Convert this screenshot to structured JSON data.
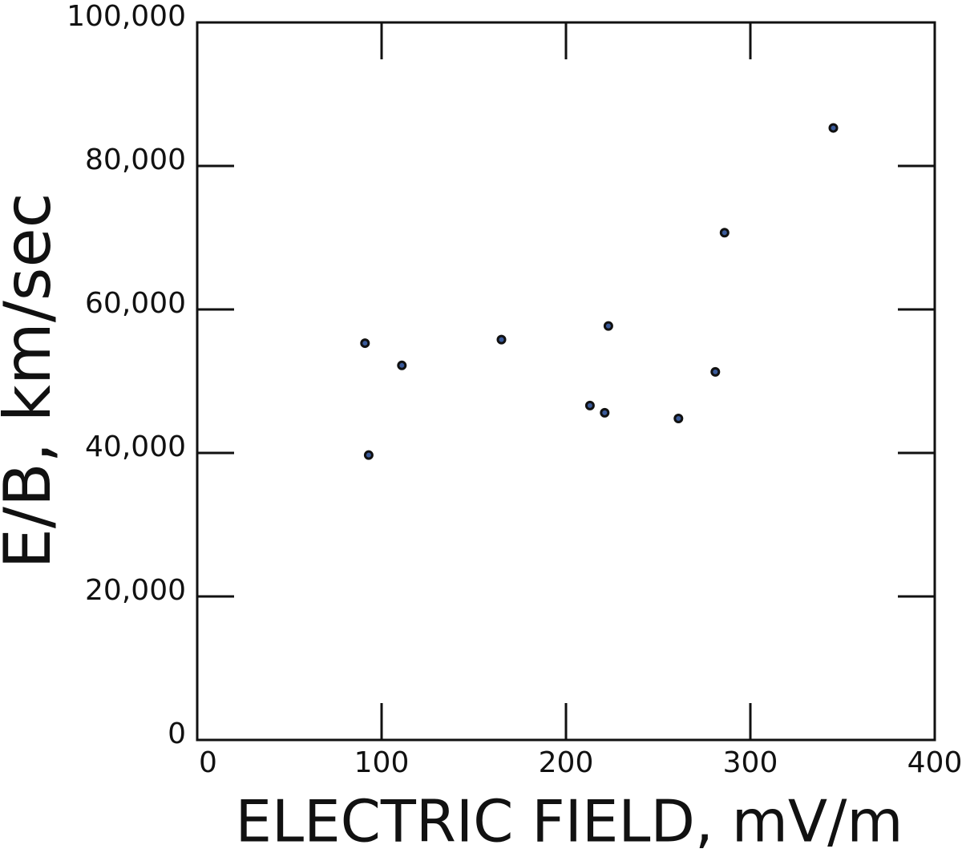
{
  "chart_data": {
    "type": "scatter",
    "xlabel": "ELECTRIC FIELD, mV/m",
    "ylabel": "E/B,  km/sec",
    "x": [
      91,
      93,
      111,
      165,
      213,
      221,
      223,
      261,
      281,
      286,
      345
    ],
    "values": [
      55300,
      39700,
      52200,
      55800,
      46600,
      45600,
      57700,
      44800,
      51300,
      70700,
      85300
    ],
    "color": "#3a5a9a",
    "xlim": [
      0,
      400
    ],
    "xticks": [
      0,
      100,
      200,
      300,
      400
    ],
    "ylim": [
      0,
      100000
    ],
    "yticks": [
      {
        "value": 0,
        "label": "0"
      },
      {
        "value": 20000,
        "label": "20,000"
      },
      {
        "value": 40000,
        "label": "40,000"
      },
      {
        "value": 60000,
        "label": "60,000"
      },
      {
        "value": 80000,
        "label": "80,000"
      },
      {
        "value": 100000,
        "label": "100,000"
      }
    ]
  }
}
